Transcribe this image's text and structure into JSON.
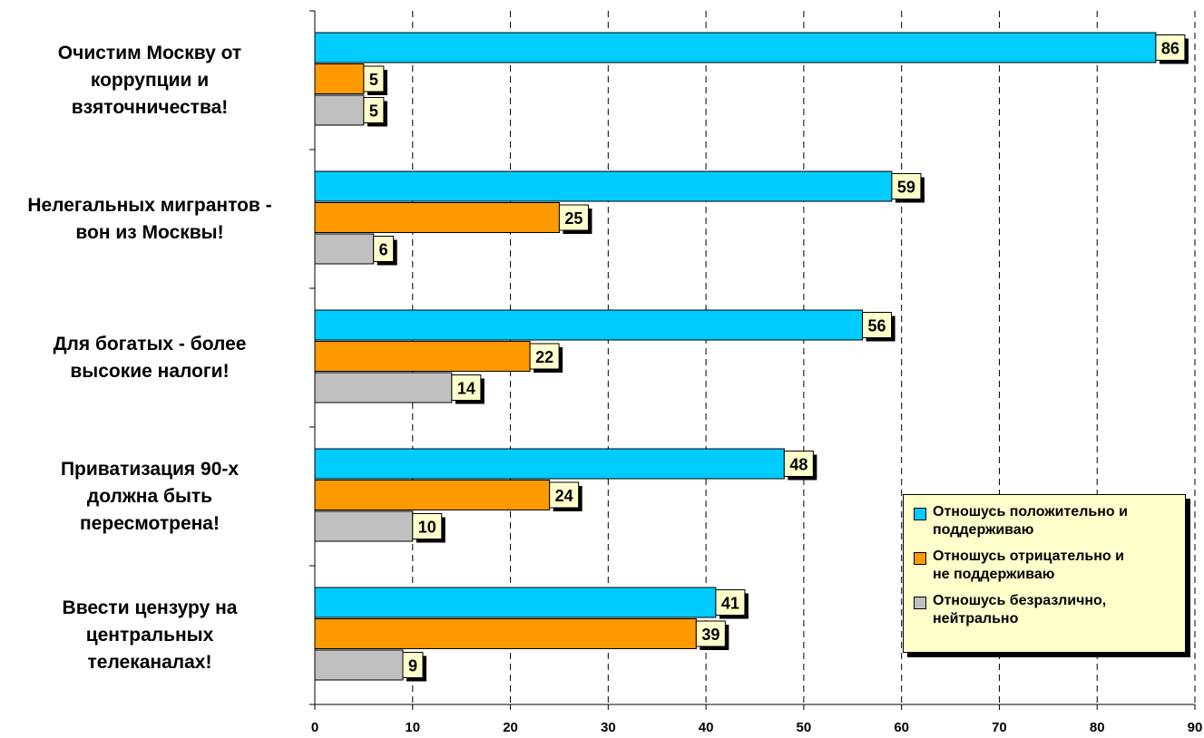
{
  "chart_data": {
    "type": "bar",
    "orientation": "horizontal",
    "categories": [
      "Очистим Москву от коррупции и взяточничества!",
      "Нелегальных мигрантов - вон из Москвы!",
      "Для богатых - более высокие налоги!",
      "Приватизация 90-х должна быть пересмотрена!",
      "Ввести цензуру на центральных телеканалах!"
    ],
    "category_lines": [
      [
        "Очистим Москву от",
        "коррупции и",
        "взяточничества!"
      ],
      [
        "Нелегальных мигрантов -",
        "вон из Москвы!"
      ],
      [
        "Для богатых - более",
        "высокие налоги!"
      ],
      [
        "Приватизация 90-х",
        "должна быть",
        "пересмотрена!"
      ],
      [
        "Ввести цензуру на",
        "центральных",
        "телеканалах!"
      ]
    ],
    "series": [
      {
        "name": "Отношусь положительно и поддерживаю",
        "name_lines": [
          "Отношусь положительно и",
          "поддерживаю"
        ],
        "color": "#00ccff",
        "values": [
          86,
          59,
          56,
          48,
          41
        ]
      },
      {
        "name": "Отношусь отрицательно и не поддерживаю",
        "name_lines": [
          "Отношусь отрицательно и",
          "не поддерживаю"
        ],
        "color": "#ff9900",
        "values": [
          5,
          25,
          22,
          24,
          39
        ]
      },
      {
        "name": "Отношусь безразлично, нейтрально",
        "name_lines": [
          "Отношусь безразлично,",
          "нейтрально"
        ],
        "color": "#c0c0c0",
        "values": [
          5,
          6,
          14,
          10,
          9
        ]
      }
    ],
    "xlim": [
      0,
      90
    ],
    "xticks": [
      0,
      10,
      20,
      30,
      40,
      50,
      60,
      70,
      80,
      90
    ],
    "grid": "vertical dashed",
    "legend_position": "bottom-right",
    "data_label_bg": "#ffffcc"
  }
}
